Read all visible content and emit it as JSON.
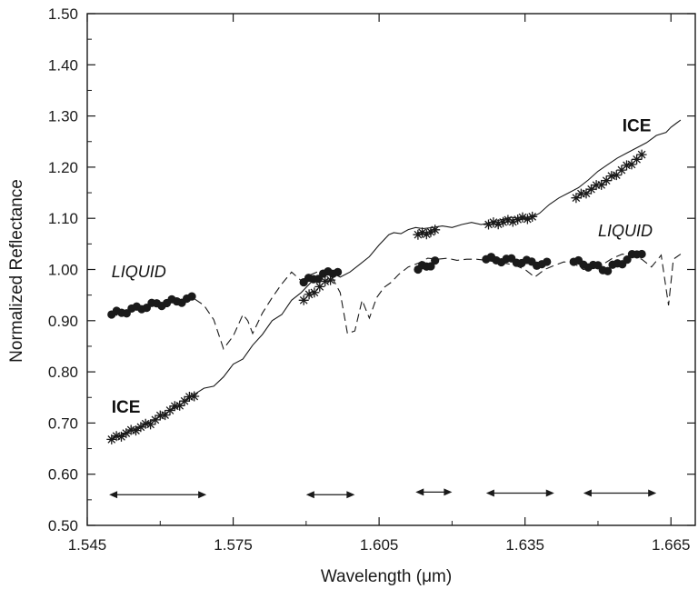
{
  "chart_data": {
    "type": "line",
    "title": "",
    "xlabel": "Wavelength (μm)",
    "ylabel": "Normalized Reflectance",
    "xlim": [
      1.545,
      1.67
    ],
    "ylim": [
      0.5,
      1.5
    ],
    "x_ticks": [
      1.545,
      1.575,
      1.605,
      1.635,
      1.665
    ],
    "x_tick_labels": [
      "1.545",
      "1.575",
      "1.605",
      "1.635",
      "1.665"
    ],
    "y_ticks": [
      0.5,
      0.6,
      0.7,
      0.8,
      0.9,
      1.0,
      1.1,
      1.2,
      1.3,
      1.4,
      1.5
    ],
    "y_tick_labels": [
      "0.50",
      "0.60",
      "0.70",
      "0.80",
      "0.90",
      "1.00",
      "1.10",
      "1.20",
      "1.30",
      "1.40",
      "1.50"
    ],
    "grid": false,
    "series": [
      {
        "label": "ICE",
        "line_style": "solid",
        "x": [
          1.5495,
          1.552,
          1.5545,
          1.557,
          1.5595,
          1.562,
          1.5645,
          1.567,
          1.569,
          1.571,
          1.573,
          1.575,
          1.577,
          1.579,
          1.581,
          1.583,
          1.585,
          1.587,
          1.589,
          1.591,
          1.593,
          1.595,
          1.597,
          1.599,
          1.601,
          1.603,
          1.605,
          1.607,
          1.608,
          1.6095,
          1.611,
          1.6125,
          1.614,
          1.616,
          1.618,
          1.62,
          1.622,
          1.624,
          1.626,
          1.628,
          1.63,
          1.632,
          1.634,
          1.636,
          1.638,
          1.64,
          1.642,
          1.644,
          1.646,
          1.648,
          1.65,
          1.652,
          1.654,
          1.656,
          1.658,
          1.66,
          1.662,
          1.664,
          1.665,
          1.666,
          1.667
        ],
        "y": [
          0.667,
          0.677,
          0.687,
          0.698,
          0.71,
          0.724,
          0.738,
          0.756,
          0.768,
          0.772,
          0.79,
          0.815,
          0.825,
          0.852,
          0.873,
          0.9,
          0.912,
          0.94,
          0.955,
          0.975,
          0.985,
          0.995,
          0.985,
          0.995,
          1.01,
          1.025,
          1.048,
          1.068,
          1.072,
          1.07,
          1.078,
          1.082,
          1.08,
          1.082,
          1.085,
          1.082,
          1.088,
          1.092,
          1.088,
          1.092,
          1.097,
          1.102,
          1.1,
          1.1,
          1.11,
          1.127,
          1.14,
          1.15,
          1.16,
          1.175,
          1.192,
          1.205,
          1.218,
          1.228,
          1.238,
          1.248,
          1.262,
          1.268,
          1.278,
          1.285,
          1.292
        ]
      },
      {
        "label": "LIQUID",
        "line_style": "dashed",
        "x": [
          1.5495,
          1.552,
          1.5545,
          1.557,
          1.5595,
          1.562,
          1.5645,
          1.567,
          1.569,
          1.571,
          1.573,
          1.575,
          1.577,
          1.578,
          1.579,
          1.581,
          1.583,
          1.585,
          1.587,
          1.589,
          1.591,
          1.593,
          1.595,
          1.597,
          1.5985,
          1.6,
          1.6015,
          1.603,
          1.6045,
          1.606,
          1.6075,
          1.609,
          1.611,
          1.613,
          1.615,
          1.617,
          1.619,
          1.621,
          1.623,
          1.625,
          1.627,
          1.629,
          1.631,
          1.633,
          1.635,
          1.637,
          1.639,
          1.641,
          1.643,
          1.645,
          1.647,
          1.649,
          1.651,
          1.653,
          1.655,
          1.657,
          1.659,
          1.661,
          1.663,
          1.6645,
          1.6655,
          1.667
        ],
        "y": [
          0.912,
          0.91,
          0.925,
          0.93,
          0.932,
          0.937,
          0.94,
          0.943,
          0.93,
          0.902,
          0.845,
          0.87,
          0.912,
          0.9,
          0.875,
          0.915,
          0.945,
          0.972,
          0.995,
          0.978,
          0.99,
          0.998,
          0.99,
          0.955,
          0.875,
          0.88,
          0.94,
          0.905,
          0.945,
          0.965,
          0.975,
          0.99,
          1.005,
          1.012,
          1.022,
          1.02,
          1.022,
          1.018,
          1.02,
          1.02,
          1.018,
          1.015,
          1.012,
          1.008,
          1.0,
          0.985,
          1.0,
          1.008,
          1.015,
          1.012,
          1.0,
          1.005,
          1.01,
          1.022,
          1.03,
          1.028,
          1.02,
          1.005,
          1.028,
          0.93,
          1.02,
          1.03
        ]
      }
    ],
    "markers": {
      "ice_stars": [
        {
          "x": [
            1.55,
            1.558,
            1.567
          ],
          "y": [
            0.668,
            0.7,
            0.755
          ]
        },
        {
          "x": [
            1.5895,
            1.593,
            1.595
          ],
          "y": [
            0.94,
            0.968,
            0.982
          ]
        },
        {
          "x": [
            1.613,
            1.615,
            1.6165
          ],
          "y": [
            1.068,
            1.072,
            1.075
          ]
        },
        {
          "x": [
            1.6275,
            1.632,
            1.6365
          ],
          "y": [
            1.088,
            1.095,
            1.103
          ]
        },
        {
          "x": [
            1.6455,
            1.652,
            1.659
          ],
          "y": [
            1.14,
            1.175,
            1.222
          ]
        }
      ],
      "liquid_dots": [
        {
          "x": [
            1.55,
            1.558,
            1.5665
          ],
          "y": [
            0.912,
            0.93,
            0.943
          ]
        },
        {
          "x": [
            1.5895,
            1.593,
            1.5965
          ],
          "y": [
            0.975,
            0.988,
            0.998
          ]
        },
        {
          "x": [
            1.613,
            1.615,
            1.6165
          ],
          "y": [
            1.0,
            1.008,
            1.015
          ]
        },
        {
          "x": [
            1.627,
            1.632,
            1.6395
          ],
          "y": [
            1.02,
            1.018,
            1.01
          ]
        },
        {
          "x": [
            1.645,
            1.652,
            1.659
          ],
          "y": [
            1.015,
            1.0,
            1.035
          ]
        }
      ]
    },
    "range_arrows": [
      {
        "x1": 1.5495,
        "x2": 1.5695,
        "y": 0.56
      },
      {
        "x1": 1.59,
        "x2": 1.6,
        "y": 0.56
      },
      {
        "x1": 1.6125,
        "x2": 1.62,
        "y": 0.565
      },
      {
        "x1": 1.627,
        "x2": 1.641,
        "y": 0.563
      },
      {
        "x1": 1.647,
        "x2": 1.662,
        "y": 0.563
      }
    ],
    "annotations": [
      {
        "text": "LIQUID",
        "style": "italic",
        "x": 1.55,
        "y": 0.985
      },
      {
        "text": "ICE",
        "style": "bold",
        "x": 1.55,
        "y": 0.72
      },
      {
        "text": "ICE",
        "style": "bold",
        "x": 1.655,
        "y": 1.27
      },
      {
        "text": "LIQUID",
        "style": "italic",
        "x": 1.65,
        "y": 1.065
      }
    ],
    "colors": {
      "lines": "#1a1a1a",
      "markers": "#1a1a1a",
      "axes": "#1a1a1a"
    }
  }
}
